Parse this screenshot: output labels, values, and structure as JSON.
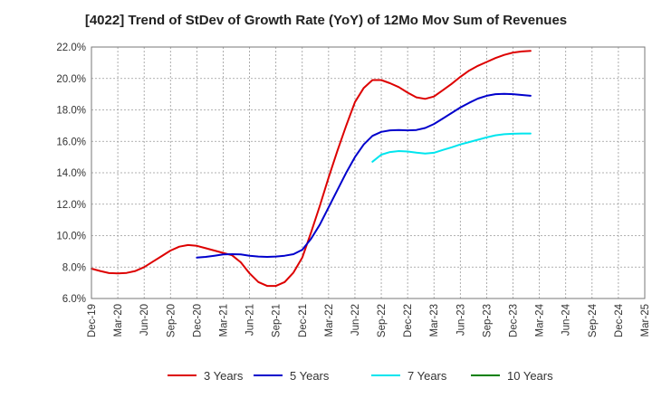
{
  "chart_data": {
    "type": "line",
    "title": "[4022]  Trend of StDev of Growth Rate (YoY) of 12Mo Mov Sum of Revenues",
    "xlabel": "",
    "ylabel": "",
    "ylim": [
      6.0,
      22.0
    ],
    "y_ticks": [
      6.0,
      8.0,
      10.0,
      12.0,
      14.0,
      16.0,
      18.0,
      20.0,
      22.0
    ],
    "y_tick_labels": [
      "6.0%",
      "8.0%",
      "10.0%",
      "12.0%",
      "14.0%",
      "16.0%",
      "18.0%",
      "20.0%",
      "22.0%"
    ],
    "x_ticks": [
      "Dec-19",
      "Mar-20",
      "Jun-20",
      "Sep-20",
      "Dec-20",
      "Mar-21",
      "Jun-21",
      "Sep-21",
      "Dec-21",
      "Mar-22",
      "Jun-22",
      "Sep-22",
      "Dec-22",
      "Mar-23",
      "Jun-23",
      "Sep-23",
      "Dec-23",
      "Mar-24",
      "Jun-24",
      "Sep-24",
      "Dec-24",
      "Mar-25"
    ],
    "grid": true,
    "legend_position": "bottom",
    "series": [
      {
        "name": "3 Years",
        "color": "#dd0000",
        "values": [
          7.9,
          7.75,
          7.62,
          7.6,
          7.63,
          7.75,
          8.0,
          8.35,
          8.7,
          9.05,
          9.3,
          9.4,
          9.35,
          9.2,
          9.05,
          8.9,
          8.75,
          8.3,
          7.6,
          7.05,
          6.8,
          6.8,
          7.05,
          7.65,
          8.6,
          10.2,
          11.9,
          13.7,
          15.4,
          17.0,
          18.5,
          19.4,
          19.9,
          19.9,
          19.7,
          19.45,
          19.1,
          18.8,
          18.7,
          18.85,
          19.25,
          19.65,
          20.1,
          20.5,
          20.8,
          21.05,
          21.3,
          21.5,
          21.65,
          21.72,
          21.75
        ]
      },
      {
        "name": "5 Years",
        "color": "#0000cc",
        "values": [
          null,
          null,
          null,
          null,
          null,
          null,
          null,
          null,
          null,
          null,
          null,
          null,
          8.6,
          8.65,
          8.72,
          8.8,
          8.82,
          8.8,
          8.72,
          8.67,
          8.65,
          8.67,
          8.72,
          8.82,
          9.1,
          9.8,
          10.7,
          11.8,
          12.9,
          14.0,
          15.0,
          15.8,
          16.35,
          16.6,
          16.7,
          16.72,
          16.7,
          16.72,
          16.85,
          17.1,
          17.45,
          17.8,
          18.15,
          18.45,
          18.72,
          18.9,
          19.0,
          19.02,
          19.0,
          18.95,
          18.9
        ]
      },
      {
        "name": "7 Years",
        "color": "#00e5ee",
        "values": [
          null,
          null,
          null,
          null,
          null,
          null,
          null,
          null,
          null,
          null,
          null,
          null,
          null,
          null,
          null,
          null,
          null,
          null,
          null,
          null,
          null,
          null,
          null,
          null,
          null,
          null,
          null,
          null,
          null,
          null,
          null,
          null,
          14.7,
          15.15,
          15.32,
          15.38,
          15.35,
          15.28,
          15.22,
          15.27,
          15.45,
          15.62,
          15.8,
          15.95,
          16.1,
          16.25,
          16.38,
          16.45,
          16.48,
          16.5,
          16.5
        ]
      },
      {
        "name": "10 Years",
        "color": "#008000",
        "values": []
      }
    ]
  }
}
